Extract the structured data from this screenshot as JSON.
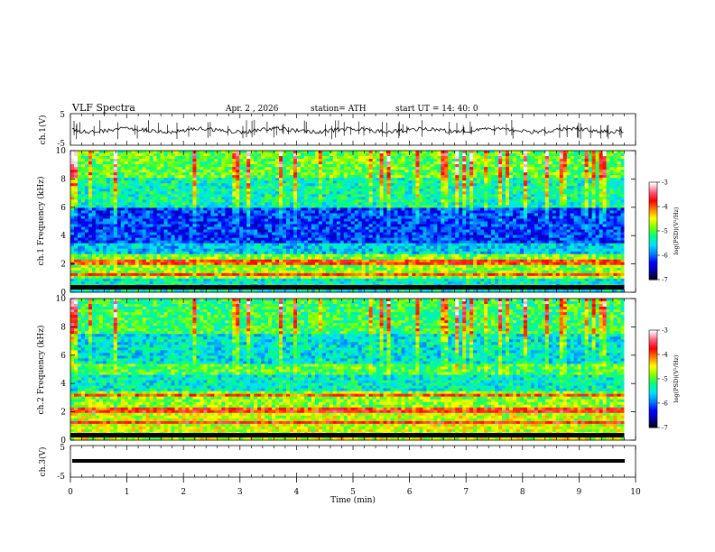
{
  "header": {
    "title": "VLF  Spectra",
    "date": "Apr. 2  , 2026",
    "station": "station= ATH",
    "start": "start  UT  =   14: 40: 0"
  },
  "chart_data": {
    "type": "heatmap",
    "xlabel": "Time  (min)",
    "xlim": [
      0,
      10
    ],
    "xticks": [
      "0",
      "1",
      "2",
      "3",
      "4",
      "5",
      "6",
      "7",
      "8",
      "9",
      "10"
    ],
    "panels": [
      {
        "id": "ch1-waveform",
        "type": "line",
        "ylabel": "ch.1(V)",
        "ylim": [
          -5,
          5
        ],
        "yticks": [
          "5",
          "-5"
        ]
      },
      {
        "id": "ch1-spectrogram",
        "type": "heatmap",
        "ylabel": "ch.1\nFrequency  (kHz)",
        "ylim": [
          0,
          10
        ],
        "yticks": [
          "10",
          "8",
          "6",
          "4",
          "2",
          "0"
        ]
      },
      {
        "id": "ch2-spectrogram",
        "type": "heatmap",
        "ylabel": "ch.2\nFrequency  (kHz)",
        "ylim": [
          0,
          10
        ],
        "yticks": [
          "10",
          "8",
          "6",
          "4",
          "2",
          "0"
        ]
      },
      {
        "id": "ch3-waveform",
        "type": "line",
        "ylabel": "ch.3(V)",
        "ylim": [
          -5,
          5
        ],
        "yticks": [
          "5",
          "-5"
        ]
      }
    ],
    "colorbar": {
      "label": "log(PSD)(V²/Hz)",
      "range": [
        -7,
        -3
      ],
      "ticks": [
        "-3",
        "-4",
        "-5",
        "-6",
        "-7"
      ],
      "colors": [
        "#000000",
        "#0000a0",
        "#0000ff",
        "#0080ff",
        "#00e0ff",
        "#00ff80",
        "#80ff00",
        "#ffff00",
        "#ff8000",
        "#ff0000",
        "#ff6080",
        "#ffffff"
      ]
    },
    "data_extent_min": 9.8
  }
}
